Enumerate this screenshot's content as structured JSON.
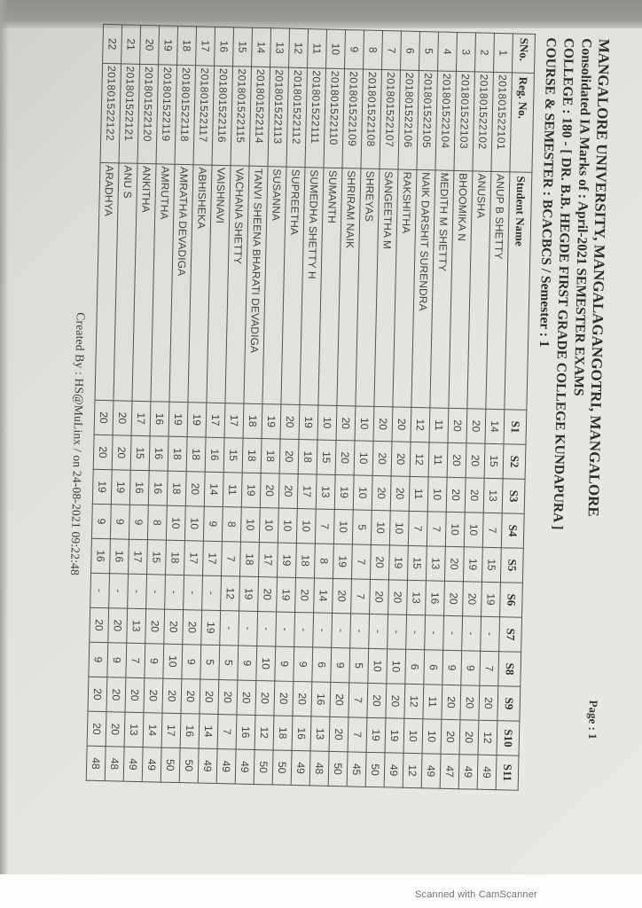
{
  "scan": {
    "page_label": "Page : 1",
    "footer": "Created By : HS@MuLinx / on 24-08-2021 09:22:48",
    "watermark": "Scanned with CamScanner"
  },
  "header": {
    "line1": "MANGALORE UNIVERSITY, MANGALAGANGOTRI, MANGALORE",
    "line2": "Consolidated IA Marks of : April-2021 SEMESTER EXAMS",
    "line3": "COLLEGE : 180 - [ DR. B.B. HEGDE FIRST GRADE COLLEGE KUNDAPURA ]",
    "line4": "COURSE & SEMESTER : BCACBCS / Semester : 1"
  },
  "table": {
    "columns": [
      "SNo.",
      "Reg. No.",
      "Student Name",
      "S1",
      "S2",
      "S3",
      "S4",
      "S5",
      "S6",
      "S7",
      "S8",
      "S9",
      "S10",
      "S11"
    ],
    "rows": [
      {
        "sno": "1",
        "reg": "201801522101",
        "name": "ANUP B SHETTY",
        "marks": [
          "14",
          "15",
          "13",
          "7",
          "15",
          "19",
          "-",
          "7",
          "20",
          "12",
          "49"
        ]
      },
      {
        "sno": "2",
        "reg": "201801522102",
        "name": "ANUSHA",
        "marks": [
          "20",
          "20",
          "20",
          "10",
          "19",
          "20",
          "-",
          "9",
          "20",
          "20",
          "49"
        ]
      },
      {
        "sno": "3",
        "reg": "201801522103",
        "name": "BHOOMIKA N",
        "marks": [
          "20",
          "20",
          "20",
          "10",
          "20",
          "20",
          "-",
          "9",
          "20",
          "20",
          "47"
        ]
      },
      {
        "sno": "4",
        "reg": "201801522104",
        "name": "MEDITH M SHETTY",
        "marks": [
          "11",
          "11",
          "10",
          "7",
          "13",
          "16",
          "-",
          "6",
          "11",
          "10",
          "49"
        ]
      },
      {
        "sno": "5",
        "reg": "201801522105",
        "name": "NAIK DARSHIT SURENDRA",
        "marks": [
          "12",
          "12",
          "11",
          "7",
          "15",
          "13",
          "-",
          "6",
          "12",
          "10",
          "12"
        ]
      },
      {
        "sno": "6",
        "reg": "201801522106",
        "name": "RAKSHITHA",
        "marks": [
          "20",
          "20",
          "20",
          "10",
          "19",
          "20",
          "-",
          "10",
          "20",
          "19",
          "49"
        ]
      },
      {
        "sno": "7",
        "reg": "201801522107",
        "name": "SANGEETHA M",
        "marks": [
          "20",
          "20",
          "20",
          "10",
          "20",
          "20",
          "-",
          "10",
          "20",
          "19",
          "50"
        ]
      },
      {
        "sno": "8",
        "reg": "201801522108",
        "name": "SHREYAS",
        "marks": [
          "10",
          "10",
          "10",
          "5",
          "7",
          "7",
          "-",
          "5",
          "7",
          "7",
          "45"
        ]
      },
      {
        "sno": "9",
        "reg": "201801522109",
        "name": "SHRIRAM NAIK",
        "marks": [
          "20",
          "20",
          "19",
          "10",
          "19",
          "20",
          "-",
          "9",
          "20",
          "20",
          "50"
        ]
      },
      {
        "sno": "10",
        "reg": "201801522110",
        "name": "SUMANTH",
        "marks": [
          "10",
          "15",
          "13",
          "7",
          "8",
          "14",
          "-",
          "6",
          "16",
          "13",
          "48"
        ]
      },
      {
        "sno": "11",
        "reg": "201801522111",
        "name": "SUMEDHA SHETTY H",
        "marks": [
          "19",
          "18",
          "17",
          "10",
          "18",
          "20",
          "-",
          "9",
          "20",
          "16",
          "49"
        ]
      },
      {
        "sno": "12",
        "reg": "201801522112",
        "name": "SUPREETHA",
        "marks": [
          "20",
          "20",
          "20",
          "10",
          "19",
          "19",
          "-",
          "9",
          "20",
          "18",
          "50"
        ]
      },
      {
        "sno": "13",
        "reg": "201801522113",
        "name": "SUSANNA",
        "marks": [
          "19",
          "18",
          "20",
          "10",
          "17",
          "20",
          "-",
          "10",
          "20",
          "12",
          "50"
        ]
      },
      {
        "sno": "14",
        "reg": "201801522114",
        "name": "TANVI SHEENA BHARATI DEVADIGA",
        "marks": [
          "18",
          "18",
          "19",
          "10",
          "18",
          "19",
          "-",
          "9",
          "20",
          "16",
          "49"
        ]
      },
      {
        "sno": "15",
        "reg": "201801522115",
        "name": "VACHANA SHETTY",
        "marks": [
          "17",
          "15",
          "11",
          "8",
          "7",
          "12",
          "-",
          "5",
          "20",
          "7",
          "49"
        ]
      },
      {
        "sno": "16",
        "reg": "201801522116",
        "name": "VAISHNAVI",
        "marks": [
          "17",
          "16",
          "14",
          "9",
          "17",
          "-",
          "19",
          "5",
          "20",
          "14",
          "49"
        ]
      },
      {
        "sno": "17",
        "reg": "201801522117",
        "name": "ABHISHEKA",
        "marks": [
          "19",
          "18",
          "20",
          "10",
          "17",
          "-",
          "20",
          "9",
          "20",
          "16",
          "50"
        ]
      },
      {
        "sno": "18",
        "reg": "201801522118",
        "name": "AMRATHA DEVADIGA",
        "marks": [
          "19",
          "18",
          "18",
          "10",
          "18",
          "-",
          "20",
          "10",
          "20",
          "17",
          "50"
        ]
      },
      {
        "sno": "19",
        "reg": "201801522119",
        "name": "AMRUTHA",
        "marks": [
          "16",
          "16",
          "16",
          "8",
          "15",
          "-",
          "20",
          "9",
          "20",
          "14",
          "49"
        ]
      },
      {
        "sno": "20",
        "reg": "201801522120",
        "name": "ANKITHA",
        "marks": [
          "17",
          "15",
          "16",
          "9",
          "17",
          "-",
          "13",
          "7",
          "20",
          "13",
          "49"
        ]
      },
      {
        "sno": "21",
        "reg": "201801522121",
        "name": "ANU S",
        "marks": [
          "20",
          "20",
          "19",
          "9",
          "16",
          "-",
          "20",
          "9",
          "20",
          "20",
          "48"
        ]
      },
      {
        "sno": "22",
        "reg": "201801522122",
        "name": "ARADHYA",
        "marks": [
          "20",
          "20",
          "19",
          "9",
          "16",
          "-",
          "20",
          "9",
          "20",
          "20",
          "48"
        ]
      }
    ]
  }
}
